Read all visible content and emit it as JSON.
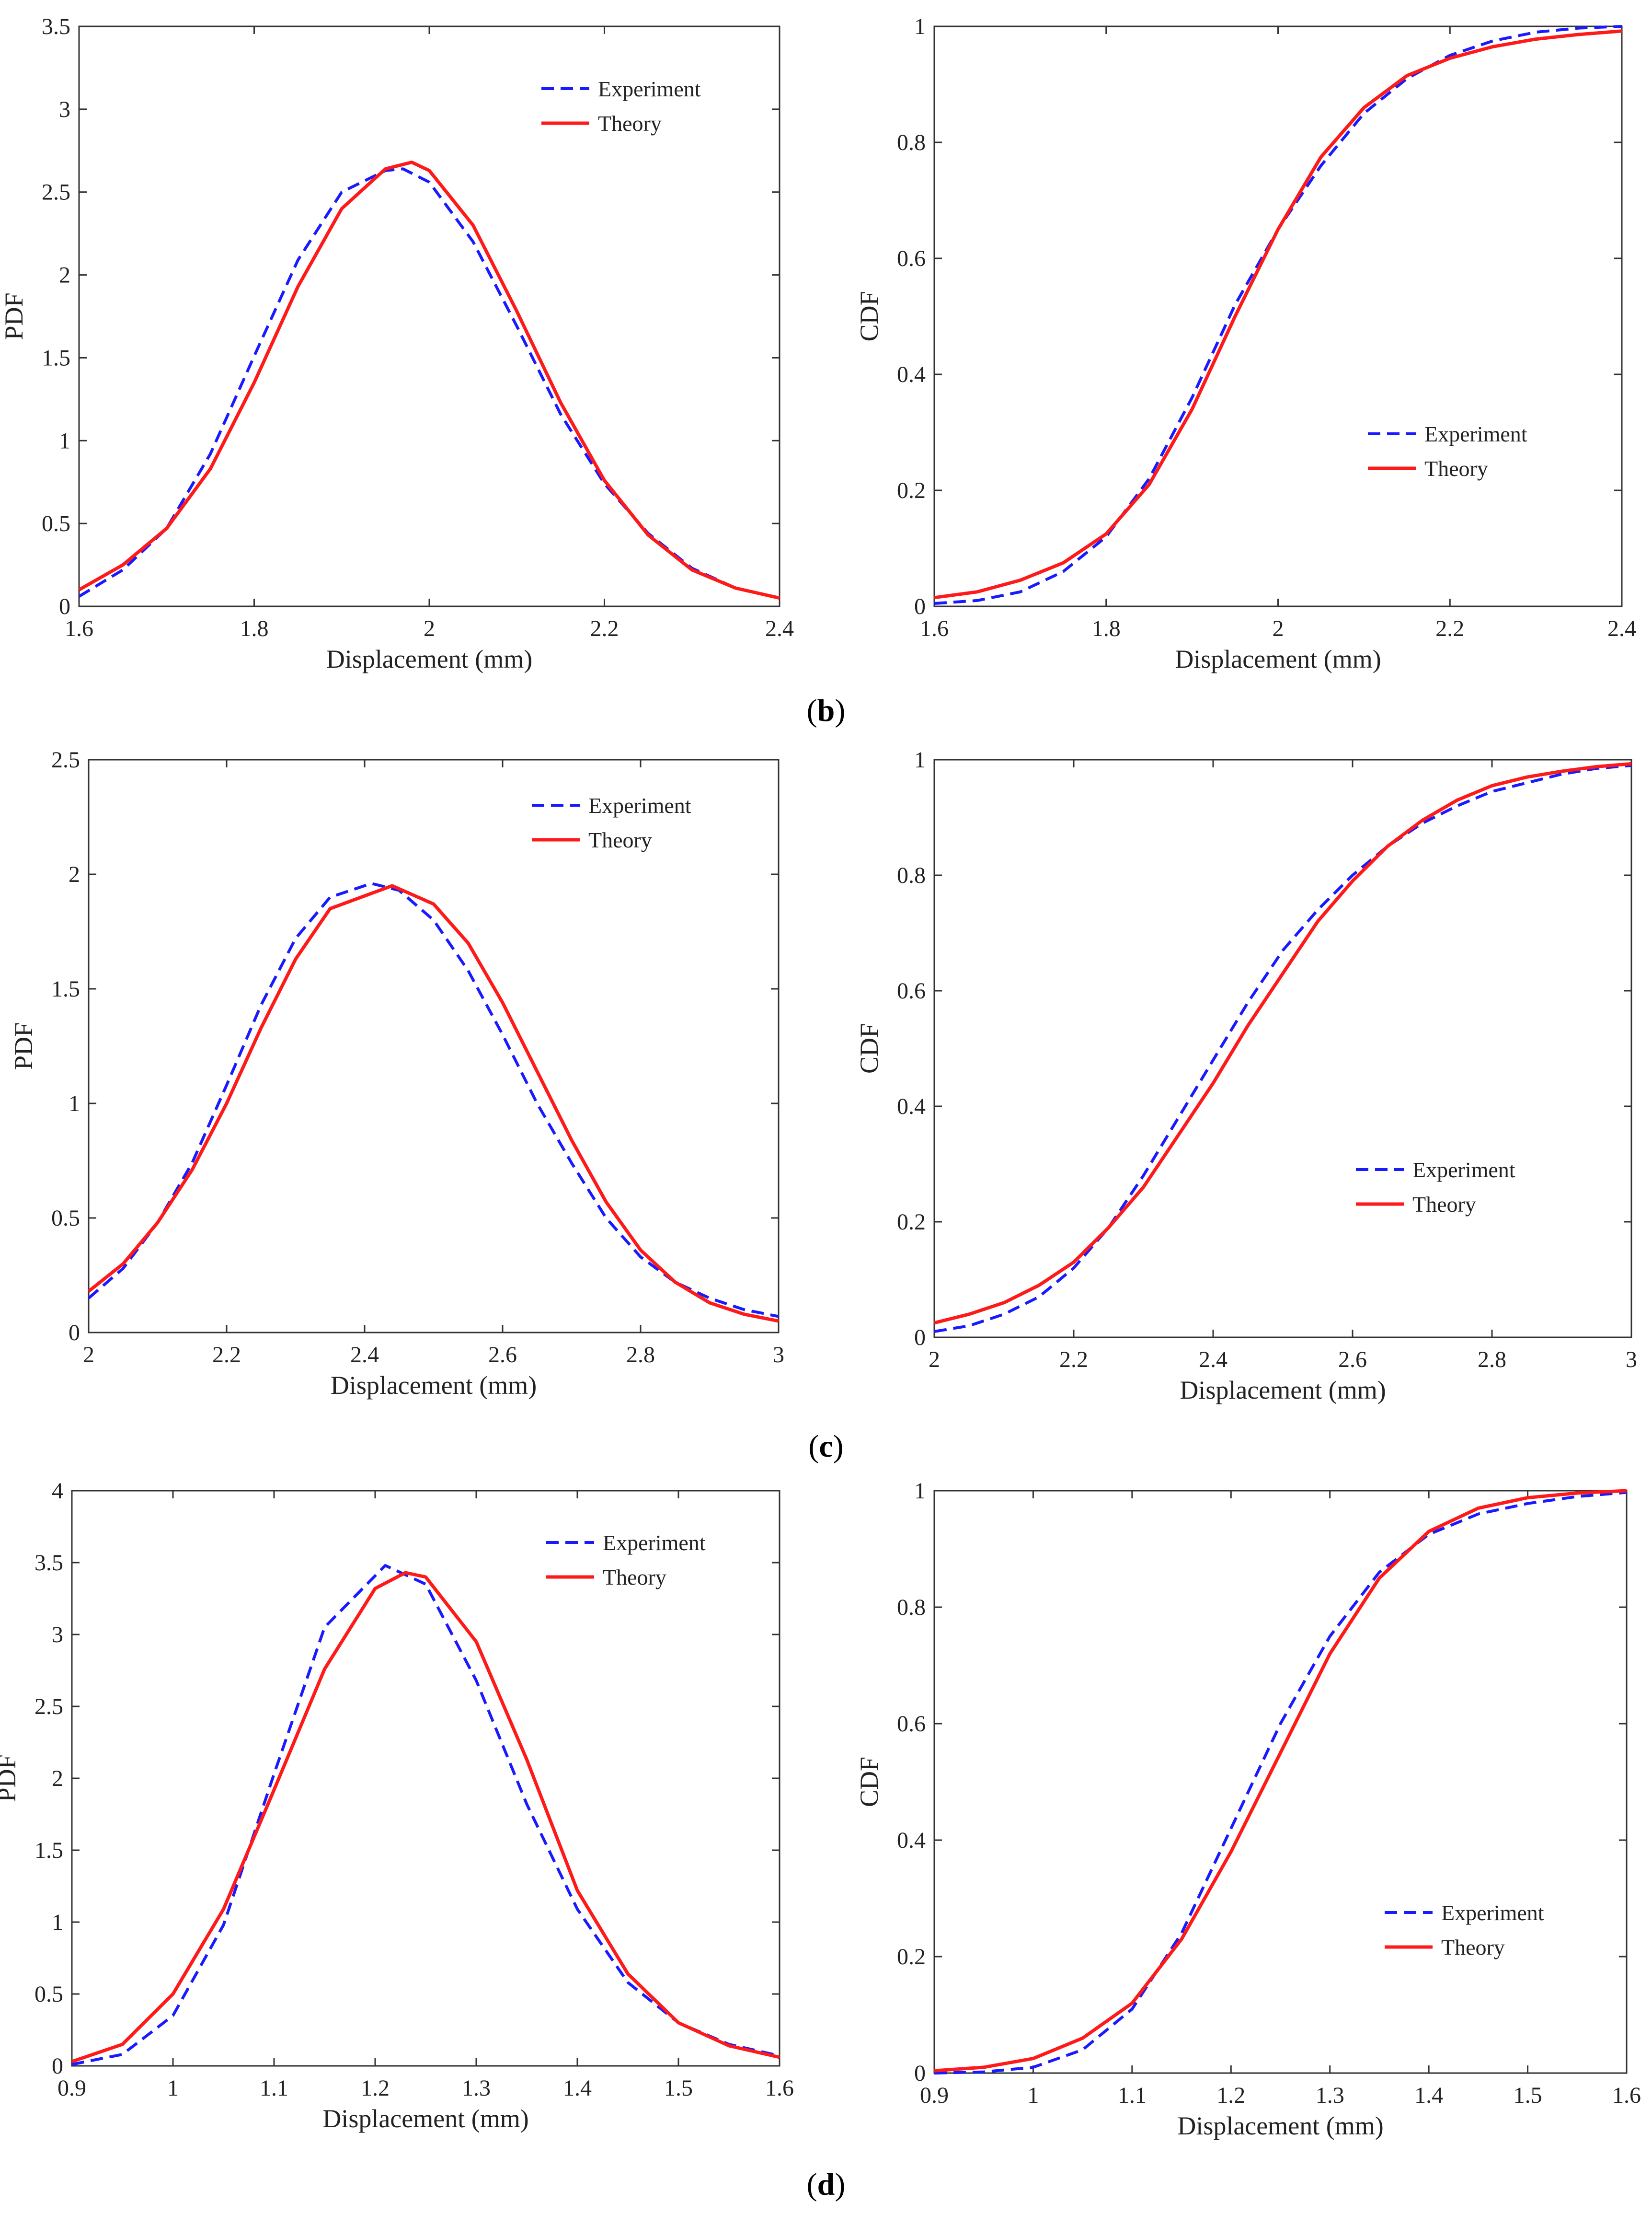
{
  "figure": {
    "panel_labels": [
      {
        "letter": "b"
      },
      {
        "letter": "c"
      },
      {
        "letter": "d"
      }
    ]
  },
  "chart_data": [
    {
      "type": "line",
      "panel": "b",
      "kind": "PDF",
      "xlabel": "Displacement (mm)",
      "ylabel": "PDF",
      "xlim": [
        1.6,
        2.4
      ],
      "ylim": [
        0,
        3.5
      ],
      "xticks": [
        1.6,
        1.8,
        2,
        2.2,
        2.4
      ],
      "xtick_labels": [
        "1.6",
        "1.8",
        "2",
        "2.2",
        "2.4"
      ],
      "yticks": [
        0,
        0.5,
        1,
        1.5,
        2,
        2.5,
        3,
        3.5
      ],
      "ytick_labels": [
        "0",
        "0.5",
        "1",
        "1.5",
        "2",
        "2.5",
        "3",
        "3.5"
      ],
      "legend_position": "top-right",
      "series": [
        {
          "name": "Experiment",
          "style": "dashed",
          "color": "#1a1aff",
          "x": [
            1.6,
            1.65,
            1.7,
            1.75,
            1.8,
            1.85,
            1.9,
            1.95,
            1.97,
            2.0,
            2.05,
            2.1,
            2.15,
            2.2,
            2.25,
            2.3,
            2.35,
            2.4
          ],
          "y": [
            0.06,
            0.22,
            0.47,
            0.92,
            1.51,
            2.09,
            2.5,
            2.63,
            2.64,
            2.56,
            2.2,
            1.69,
            1.16,
            0.74,
            0.44,
            0.23,
            0.11,
            0.05
          ]
        },
        {
          "name": "Theory",
          "style": "solid",
          "color": "#ff1a1a",
          "x": [
            1.6,
            1.65,
            1.7,
            1.75,
            1.8,
            1.85,
            1.9,
            1.95,
            1.98,
            2.0,
            2.05,
            2.1,
            2.15,
            2.2,
            2.25,
            2.3,
            2.35,
            2.4
          ],
          "y": [
            0.1,
            0.25,
            0.47,
            0.83,
            1.35,
            1.93,
            2.4,
            2.64,
            2.68,
            2.63,
            2.3,
            1.78,
            1.23,
            0.76,
            0.43,
            0.22,
            0.11,
            0.05
          ]
        }
      ]
    },
    {
      "type": "line",
      "panel": "b",
      "kind": "CDF",
      "xlabel": "Displacement (mm)",
      "ylabel": "CDF",
      "xlim": [
        1.6,
        2.4
      ],
      "ylim": [
        0,
        1
      ],
      "xticks": [
        1.6,
        1.8,
        2,
        2.2,
        2.4
      ],
      "xtick_labels": [
        "1.6",
        "1.8",
        "2",
        "2.2",
        "2.4"
      ],
      "yticks": [
        0,
        0.2,
        0.4,
        0.6,
        0.8,
        1
      ],
      "ytick_labels": [
        "0",
        "0.2",
        "0.4",
        "0.6",
        "0.8",
        "1"
      ],
      "legend_position": "center-right",
      "series": [
        {
          "name": "Experiment",
          "style": "dashed",
          "color": "#1a1aff",
          "x": [
            1.6,
            1.65,
            1.7,
            1.75,
            1.8,
            1.85,
            1.9,
            1.95,
            2.0,
            2.05,
            2.1,
            2.15,
            2.2,
            2.25,
            2.3,
            2.35,
            2.4
          ],
          "y": [
            0.005,
            0.01,
            0.025,
            0.06,
            0.12,
            0.22,
            0.36,
            0.52,
            0.65,
            0.76,
            0.85,
            0.91,
            0.95,
            0.975,
            0.99,
            0.997,
            1.0
          ]
        },
        {
          "name": "Theory",
          "style": "solid",
          "color": "#ff1a1a",
          "x": [
            1.6,
            1.65,
            1.7,
            1.75,
            1.8,
            1.85,
            1.9,
            1.95,
            2.0,
            2.05,
            2.1,
            2.15,
            2.2,
            2.25,
            2.3,
            2.35,
            2.4
          ],
          "y": [
            0.015,
            0.025,
            0.045,
            0.075,
            0.125,
            0.21,
            0.34,
            0.5,
            0.65,
            0.775,
            0.86,
            0.915,
            0.945,
            0.965,
            0.978,
            0.986,
            0.992
          ]
        }
      ]
    },
    {
      "type": "line",
      "panel": "c",
      "kind": "PDF",
      "xlabel": "Displacement (mm)",
      "ylabel": "PDF",
      "xlim": [
        2,
        3
      ],
      "ylim": [
        0,
        2.5
      ],
      "xticks": [
        2,
        2.2,
        2.4,
        2.6,
        2.8,
        3
      ],
      "xtick_labels": [
        "2",
        "2.2",
        "2.4",
        "2.6",
        "2.8",
        "3"
      ],
      "yticks": [
        0,
        0.5,
        1,
        1.5,
        2,
        2.5
      ],
      "ytick_labels": [
        "0",
        "0.5",
        "1",
        "1.5",
        "2",
        "2.5"
      ],
      "legend_position": "top-right",
      "series": [
        {
          "name": "Experiment",
          "style": "dashed",
          "color": "#1a1aff",
          "x": [
            2.0,
            2.05,
            2.1,
            2.15,
            2.2,
            2.25,
            2.3,
            2.35,
            2.41,
            2.45,
            2.5,
            2.55,
            2.6,
            2.65,
            2.7,
            2.75,
            2.8,
            2.85,
            2.9,
            2.95,
            3.0
          ],
          "y": [
            0.15,
            0.28,
            0.48,
            0.74,
            1.08,
            1.43,
            1.72,
            1.9,
            1.96,
            1.93,
            1.8,
            1.58,
            1.3,
            1.0,
            0.74,
            0.5,
            0.33,
            0.22,
            0.15,
            0.1,
            0.07
          ]
        },
        {
          "name": "Theory",
          "style": "solid",
          "color": "#ff1a1a",
          "x": [
            2.0,
            2.05,
            2.1,
            2.15,
            2.2,
            2.25,
            2.3,
            2.35,
            2.44,
            2.5,
            2.55,
            2.6,
            2.65,
            2.7,
            2.75,
            2.8,
            2.85,
            2.9,
            2.95,
            3.0
          ],
          "y": [
            0.18,
            0.3,
            0.48,
            0.71,
            1.0,
            1.33,
            1.63,
            1.85,
            1.95,
            1.87,
            1.7,
            1.44,
            1.14,
            0.84,
            0.57,
            0.36,
            0.22,
            0.13,
            0.08,
            0.05
          ]
        }
      ]
    },
    {
      "type": "line",
      "panel": "c",
      "kind": "CDF",
      "xlabel": "Displacement (mm)",
      "ylabel": "CDF",
      "xlim": [
        2,
        3
      ],
      "ylim": [
        0,
        1
      ],
      "xticks": [
        2,
        2.2,
        2.4,
        2.6,
        2.8,
        3
      ],
      "xtick_labels": [
        "2",
        "2.2",
        "2.4",
        "2.6",
        "2.8",
        "3"
      ],
      "yticks": [
        0,
        0.2,
        0.4,
        0.6,
        0.8,
        1
      ],
      "ytick_labels": [
        "0",
        "0.2",
        "0.4",
        "0.6",
        "0.8",
        "1"
      ],
      "legend_position": "center-right",
      "series": [
        {
          "name": "Experiment",
          "style": "dashed",
          "color": "#1a1aff",
          "x": [
            2.0,
            2.05,
            2.1,
            2.15,
            2.2,
            2.25,
            2.3,
            2.35,
            2.4,
            2.45,
            2.5,
            2.55,
            2.6,
            2.65,
            2.7,
            2.75,
            2.8,
            2.85,
            2.9,
            2.95,
            3.0
          ],
          "y": [
            0.01,
            0.02,
            0.04,
            0.07,
            0.12,
            0.19,
            0.28,
            0.38,
            0.48,
            0.58,
            0.67,
            0.74,
            0.8,
            0.85,
            0.89,
            0.92,
            0.945,
            0.96,
            0.975,
            0.985,
            0.99
          ]
        },
        {
          "name": "Theory",
          "style": "solid",
          "color": "#ff1a1a",
          "x": [
            2.0,
            2.05,
            2.1,
            2.15,
            2.2,
            2.25,
            2.3,
            2.35,
            2.4,
            2.45,
            2.5,
            2.55,
            2.6,
            2.65,
            2.7,
            2.75,
            2.8,
            2.85,
            2.9,
            2.95,
            3.0
          ],
          "y": [
            0.025,
            0.04,
            0.06,
            0.09,
            0.13,
            0.19,
            0.26,
            0.35,
            0.44,
            0.54,
            0.63,
            0.72,
            0.79,
            0.85,
            0.895,
            0.93,
            0.955,
            0.97,
            0.98,
            0.988,
            0.993
          ]
        }
      ]
    },
    {
      "type": "line",
      "panel": "d",
      "kind": "PDF",
      "xlabel": "Displacement (mm)",
      "ylabel": "PDF",
      "xlim": [
        0.9,
        1.6
      ],
      "ylim": [
        0,
        4
      ],
      "xticks": [
        0.9,
        1,
        1.1,
        1.2,
        1.3,
        1.4,
        1.5,
        1.6
      ],
      "xtick_labels": [
        "0.9",
        "1",
        "1.1",
        "1.2",
        "1.3",
        "1.4",
        "1.5",
        "1.6"
      ],
      "yticks": [
        0,
        0.5,
        1,
        1.5,
        2,
        2.5,
        3,
        3.5,
        4
      ],
      "ytick_labels": [
        "0",
        "0.5",
        "1",
        "1.5",
        "2",
        "2.5",
        "3",
        "3.5",
        "4"
      ],
      "legend_position": "top-right",
      "series": [
        {
          "name": "Experiment",
          "style": "dashed",
          "color": "#1a1aff",
          "x": [
            0.9,
            0.95,
            1.0,
            1.05,
            1.1,
            1.15,
            1.21,
            1.25,
            1.3,
            1.35,
            1.4,
            1.45,
            1.5,
            1.55,
            1.6
          ],
          "y": [
            0.01,
            0.08,
            0.35,
            0.98,
            2.03,
            3.05,
            3.48,
            3.35,
            2.68,
            1.82,
            1.09,
            0.58,
            0.3,
            0.15,
            0.07
          ]
        },
        {
          "name": "Theory",
          "style": "solid",
          "color": "#ff1a1a",
          "x": [
            0.9,
            0.95,
            1.0,
            1.05,
            1.1,
            1.15,
            1.2,
            1.23,
            1.25,
            1.3,
            1.35,
            1.4,
            1.45,
            1.5,
            1.55,
            1.6
          ],
          "y": [
            0.03,
            0.15,
            0.5,
            1.09,
            1.92,
            2.76,
            3.32,
            3.43,
            3.4,
            2.95,
            2.13,
            1.22,
            0.64,
            0.3,
            0.14,
            0.06
          ]
        }
      ]
    },
    {
      "type": "line",
      "panel": "d",
      "kind": "CDF",
      "xlabel": "Displacement (mm)",
      "ylabel": "CDF",
      "xlim": [
        0.9,
        1.6
      ],
      "ylim": [
        0,
        1
      ],
      "xticks": [
        0.9,
        1,
        1.1,
        1.2,
        1.3,
        1.4,
        1.5,
        1.6
      ],
      "xtick_labels": [
        "0.9",
        "1",
        "1.1",
        "1.2",
        "1.3",
        "1.4",
        "1.5",
        "1.6"
      ],
      "yticks": [
        0,
        0.2,
        0.4,
        0.6,
        0.8,
        1
      ],
      "ytick_labels": [
        "0",
        "0.2",
        "0.4",
        "0.6",
        "0.8",
        "1"
      ],
      "legend_position": "bottom-right",
      "series": [
        {
          "name": "Experiment",
          "style": "dashed",
          "color": "#1a1aff",
          "x": [
            0.9,
            0.95,
            1.0,
            1.05,
            1.1,
            1.15,
            1.2,
            1.25,
            1.3,
            1.35,
            1.4,
            1.45,
            1.5,
            1.55,
            1.6
          ],
          "y": [
            0.0,
            0.002,
            0.01,
            0.04,
            0.11,
            0.24,
            0.42,
            0.6,
            0.75,
            0.86,
            0.925,
            0.96,
            0.978,
            0.99,
            0.997
          ]
        },
        {
          "name": "Theory",
          "style": "solid",
          "color": "#ff1a1a",
          "x": [
            0.9,
            0.95,
            1.0,
            1.05,
            1.1,
            1.15,
            1.2,
            1.25,
            1.3,
            1.35,
            1.4,
            1.45,
            1.5,
            1.55,
            1.6
          ],
          "y": [
            0.004,
            0.01,
            0.025,
            0.06,
            0.12,
            0.23,
            0.38,
            0.55,
            0.72,
            0.85,
            0.93,
            0.97,
            0.988,
            0.996,
            1.0
          ]
        }
      ]
    }
  ]
}
